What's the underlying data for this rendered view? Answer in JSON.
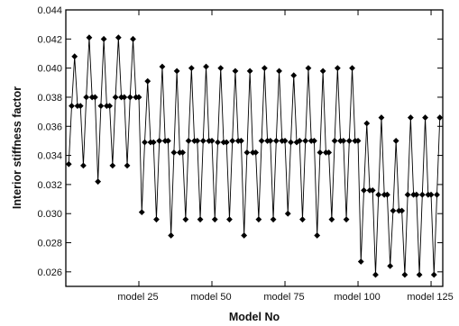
{
  "chart_data": {
    "type": "line",
    "title": "",
    "xlabel": "Model No",
    "ylabel": "Interior stiffness factor",
    "xlim": [
      0,
      129
    ],
    "ylim": [
      0.025,
      0.044
    ],
    "xticks": [
      {
        "x": 25,
        "label": "model 25"
      },
      {
        "x": 50,
        "label": "model 50"
      },
      {
        "x": 75,
        "label": "model 75"
      },
      {
        "x": 100,
        "label": "model 100"
      },
      {
        "x": 125,
        "label": "model 125"
      }
    ],
    "yticks": [
      {
        "y": 0.026,
        "label": "0.026"
      },
      {
        "y": 0.028,
        "label": "0.028"
      },
      {
        "y": 0.03,
        "label": "0.030"
      },
      {
        "y": 0.032,
        "label": "0.032"
      },
      {
        "y": 0.034,
        "label": "0.034"
      },
      {
        "y": 0.036,
        "label": "0.036"
      },
      {
        "y": 0.038,
        "label": "0.038"
      },
      {
        "y": 0.04,
        "label": "0.040"
      },
      {
        "y": 0.042,
        "label": "0.042"
      },
      {
        "y": 0.044,
        "label": "0.044"
      }
    ],
    "grid": false,
    "marker": "diamond",
    "series": [
      {
        "color": "#000000",
        "x": [
          1,
          2,
          3,
          4,
          5,
          6,
          7,
          8,
          9,
          10,
          11,
          12,
          13,
          14,
          15,
          16,
          17,
          18,
          19,
          20,
          21,
          22,
          23,
          24,
          25,
          26,
          27,
          28,
          29,
          30,
          31,
          32,
          33,
          34,
          35,
          36,
          37,
          38,
          39,
          40,
          41,
          42,
          43,
          44,
          45,
          46,
          47,
          48,
          49,
          50,
          51,
          52,
          53,
          54,
          55,
          56,
          57,
          58,
          59,
          60,
          61,
          62,
          63,
          64,
          65,
          66,
          67,
          68,
          69,
          70,
          71,
          72,
          73,
          74,
          75,
          76,
          77,
          78,
          79,
          80,
          81,
          82,
          83,
          84,
          85,
          86,
          87,
          88,
          89,
          90,
          91,
          92,
          93,
          94,
          95,
          96,
          97,
          98,
          99,
          100,
          101,
          102,
          103,
          104,
          105,
          106,
          107,
          108,
          109,
          110,
          111,
          112,
          113,
          114,
          115,
          116,
          117,
          118,
          119,
          120,
          121,
          122,
          123,
          124,
          125,
          126,
          127,
          128
        ],
        "values": [
          0.0334,
          0.0374,
          0.0408,
          0.0374,
          0.0374,
          0.0333,
          0.038,
          0.0421,
          0.038,
          0.038,
          0.0322,
          0.0374,
          0.042,
          0.0374,
          0.0374,
          0.0333,
          0.038,
          0.0421,
          0.038,
          0.038,
          0.0333,
          0.038,
          0.042,
          0.038,
          0.038,
          0.0301,
          0.0349,
          0.0391,
          0.0349,
          0.0349,
          0.0296,
          0.035,
          0.0401,
          0.035,
          0.035,
          0.0285,
          0.0342,
          0.0398,
          0.0342,
          0.0342,
          0.0296,
          0.035,
          0.04,
          0.035,
          0.035,
          0.0296,
          0.035,
          0.0401,
          0.035,
          0.035,
          0.0296,
          0.0349,
          0.04,
          0.0349,
          0.0349,
          0.0296,
          0.035,
          0.0398,
          0.035,
          0.035,
          0.0285,
          0.0342,
          0.0398,
          0.0342,
          0.0342,
          0.0296,
          0.035,
          0.04,
          0.035,
          0.035,
          0.0296,
          0.035,
          0.0398,
          0.035,
          0.035,
          0.03,
          0.0349,
          0.0395,
          0.0349,
          0.035,
          0.0296,
          0.035,
          0.04,
          0.035,
          0.035,
          0.0285,
          0.0342,
          0.0398,
          0.0342,
          0.0342,
          0.0296,
          0.035,
          0.04,
          0.035,
          0.035,
          0.0296,
          0.035,
          0.04,
          0.035,
          0.035,
          0.0267,
          0.0316,
          0.0362,
          0.0316,
          0.0316,
          0.0258,
          0.0313,
          0.0366,
          0.0313,
          0.0313,
          0.0264,
          0.0302,
          0.035,
          0.0302,
          0.0302,
          0.0258,
          0.0313,
          0.0366,
          0.0313,
          0.0313,
          0.0258,
          0.0313,
          0.0366,
          0.0313,
          0.0313,
          0.0258,
          0.0313,
          0.0366
        ]
      }
    ]
  }
}
